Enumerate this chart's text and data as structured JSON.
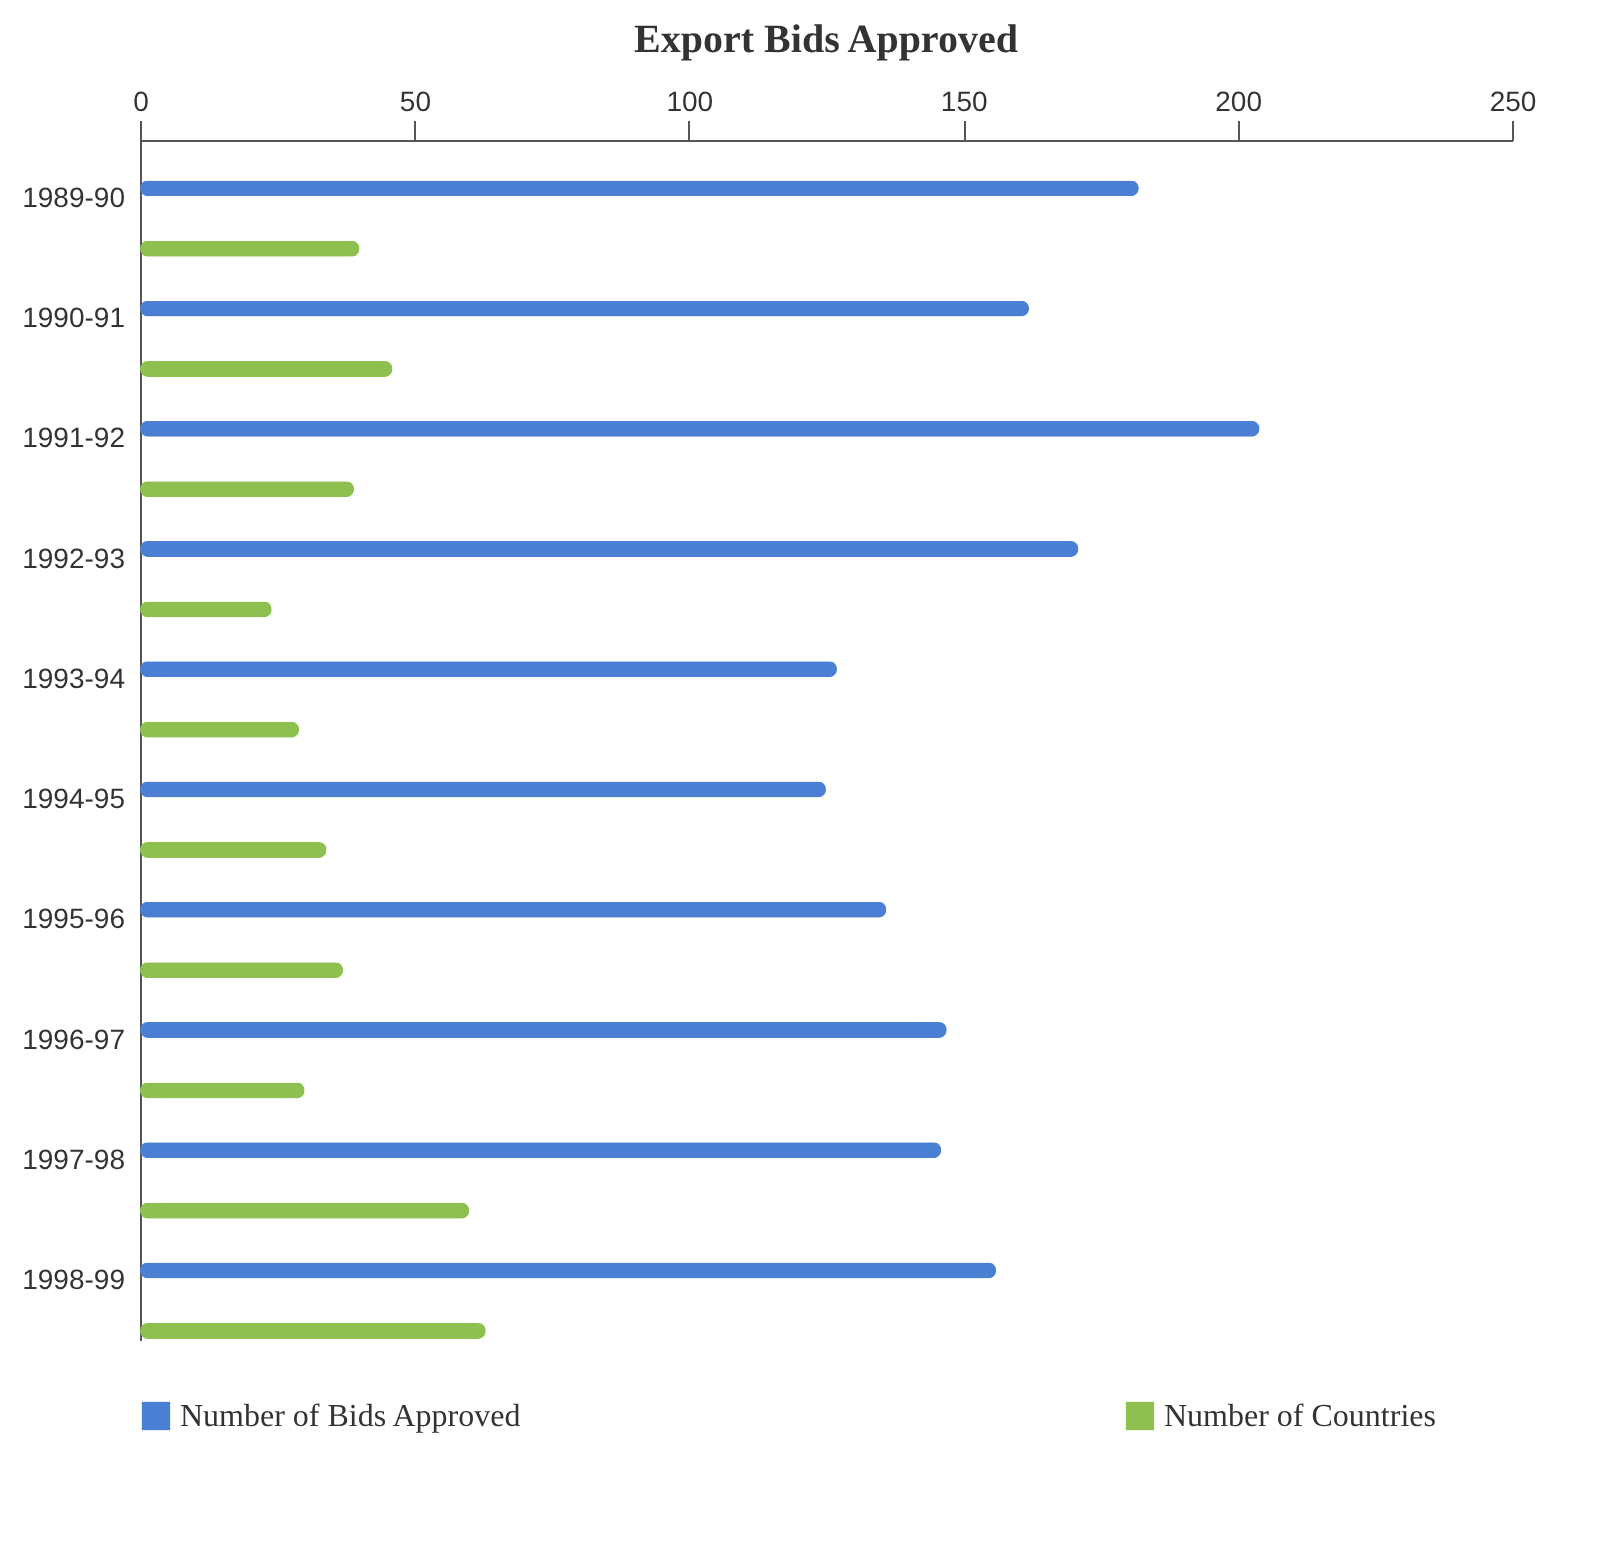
{
  "chart_data": {
    "type": "bar",
    "orientation": "horizontal",
    "title": "Export Bids Approved",
    "categories": [
      "1989-90",
      "1990-91",
      "1991-92",
      "1992-93",
      "1993-94",
      "1994-95",
      "1995-96",
      "1996-97",
      "1997-98",
      "1998-99"
    ],
    "series": [
      {
        "name": "Number of Bids Approved",
        "color": "#4a7fd4",
        "values": [
          182,
          162,
          204,
          171,
          127,
          125,
          136,
          147,
          146,
          156
        ]
      },
      {
        "name": "Number of Countries",
        "color": "#8dc04e",
        "values": [
          40,
          46,
          39,
          24,
          29,
          34,
          37,
          30,
          60,
          63
        ]
      }
    ],
    "xlim": [
      0,
      250
    ],
    "xticks": [
      0,
      50,
      100,
      150,
      200,
      250
    ],
    "grid": false,
    "legend": "bottom"
  }
}
